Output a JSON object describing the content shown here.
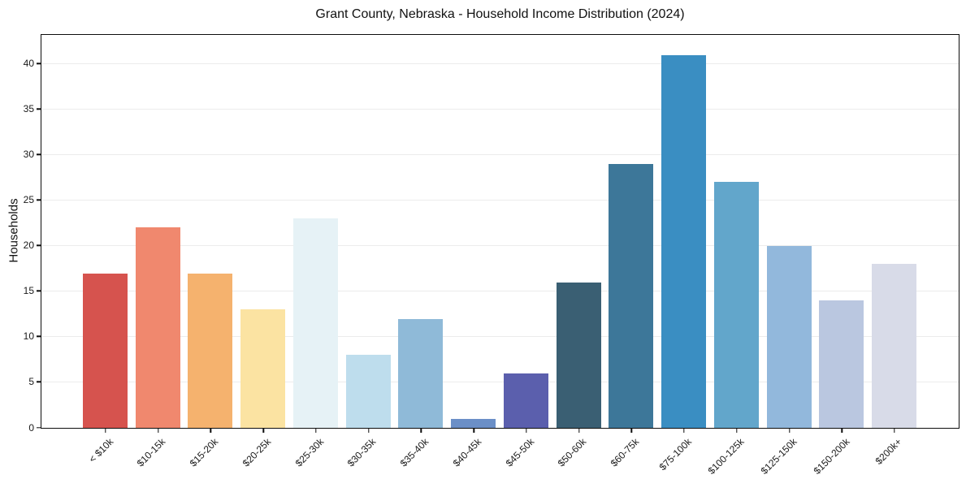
{
  "chart": {
    "title": "Grant County, Nebraska - Household Income Distribution (2024)",
    "ylabel": "Households"
  },
  "chart_data": {
    "type": "bar",
    "title": "Grant County, Nebraska - Household Income Distribution (2024)",
    "xlabel": "",
    "ylabel": "Households",
    "categories": [
      "< $10k",
      "$10-15k",
      "$15-20k",
      "$20-25k",
      "$25-30k",
      "$30-35k",
      "$35-40k",
      "$40-45k",
      "$45-50k",
      "$50-60k",
      "$60-75k",
      "$75-100k",
      "$100-125k",
      "$125-150k",
      "$150-200k",
      "$200k+"
    ],
    "values": [
      17,
      22,
      17,
      13,
      23,
      8,
      12,
      1,
      6,
      16,
      29,
      41,
      27,
      20,
      14,
      18
    ],
    "bar_colors": [
      "#d6534e",
      "#f0886e",
      "#f5b26e",
      "#fbe3a2",
      "#e6f2f6",
      "#bedded",
      "#8fbad8",
      "#6b8fc7",
      "#5b5fad",
      "#3a5f73",
      "#3d7799",
      "#3a8ec2",
      "#62a6cb",
      "#92b8dc",
      "#bac7e0",
      "#d8dbe8"
    ],
    "yticks": [
      0,
      5,
      10,
      15,
      20,
      25,
      30,
      35,
      40
    ],
    "ylim": [
      0,
      43.1
    ],
    "grid": "horizontal-only",
    "grid_color": "#ececec",
    "legend": "none",
    "background": "#ffffff",
    "spine_color": "#0d0d0d",
    "tick_label_color": "#1a1a1a"
  }
}
